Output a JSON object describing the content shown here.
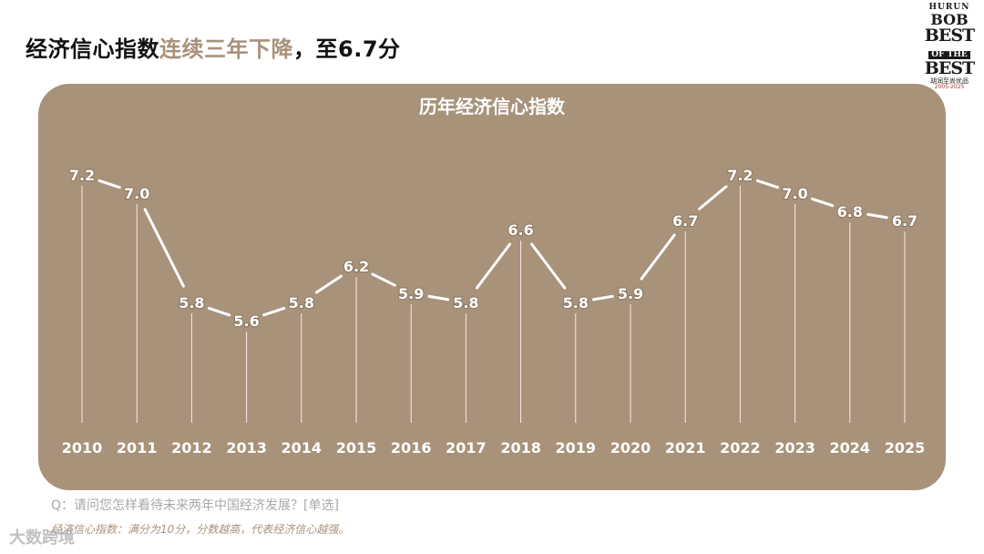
{
  "headline": {
    "part1": "经济信心指数",
    "part2": "连续三年下降",
    "part3": "，至6.7分"
  },
  "logo": {
    "line1": "HURUN",
    "line2": "BOB",
    "line3": "BEST",
    "line4": "OF THE",
    "line5": "BEST",
    "line6": "胡润至尚优品",
    "line7": "2005-2025"
  },
  "colors": {
    "panel": "#a8927a",
    "accent": "#a8927a",
    "line": "#ffffff"
  },
  "chart_data": {
    "type": "line",
    "title": "历年经济信心指数",
    "categories": [
      "2010",
      "2011",
      "2012",
      "2013",
      "2014",
      "2015",
      "2016",
      "2017",
      "2018",
      "2019",
      "2020",
      "2021",
      "2022",
      "2023",
      "2024",
      "2025"
    ],
    "series": [
      {
        "values": [
          7.2,
          7.0,
          5.8,
          5.6,
          5.8,
          6.2,
          5.9,
          5.8,
          6.6,
          5.8,
          5.9,
          6.7,
          7.2,
          7.0,
          6.8,
          6.7
        ]
      }
    ],
    "data_labels": [
      "7.2",
      "7.0",
      "5.8",
      "5.6",
      "5.8",
      "6.2",
      "5.9",
      "5.8",
      "6.6",
      "5.8",
      "5.9",
      "6.7",
      "7.2",
      "7.0",
      "6.8",
      "6.7"
    ],
    "grid": false,
    "legend": "none"
  },
  "footer": {
    "question": "Q：请问您怎样看待未来两年中国经济发展？[单选]",
    "note": "经济信心指数：满分为10分，分数越高，代表经济信心越强。",
    "watermark": "大数跨境"
  }
}
